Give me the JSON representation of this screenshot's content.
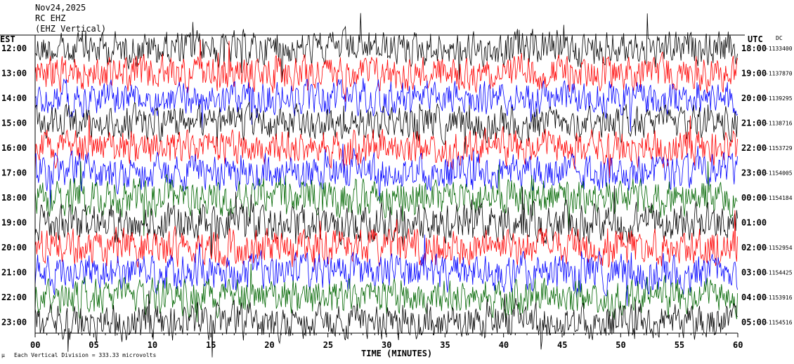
{
  "header": {
    "date": "Nov24,2025",
    "station": "RC EHZ",
    "channel_hint": "(EHZ Vertical)"
  },
  "left_axis_label": "EST",
  "right_axis_label": "UTC",
  "dc_label": "DC",
  "footer": {
    "scale_text": "Each Vertical Division =  333.33 microvolts",
    "mu_symbol": "µ"
  },
  "chart_data": {
    "type": "line",
    "title": "",
    "xlabel": "TIME (MINUTES)",
    "ylabel": "",
    "xlim": [
      0,
      60
    ],
    "x_ticks": [
      "00",
      "05",
      "10",
      "15",
      "20",
      "25",
      "30",
      "35",
      "40",
      "45",
      "50",
      "55",
      "60"
    ],
    "x_tick_values": [
      0,
      5,
      10,
      15,
      20,
      25,
      30,
      35,
      40,
      45,
      50,
      55,
      60
    ],
    "trace_colors": [
      "#000000",
      "#ff0000",
      "#0000ff",
      "#006600"
    ],
    "rows": [
      {
        "est": "12:00",
        "utc": "18:00",
        "dc": "-1133400",
        "color": "#000000",
        "amp": 0.85
      },
      {
        "est": "13:00",
        "utc": "19:00",
        "dc": "-1137870",
        "color": "#ff0000",
        "amp": 0.9
      },
      {
        "est": "14:00",
        "utc": "20:00",
        "dc": "-1139295",
        "color": "#0000ff",
        "amp": 0.8
      },
      {
        "est": "15:00",
        "utc": "21:00",
        "dc": "-1138716",
        "color": "#000000",
        "amp": 0.8
      },
      {
        "est": "16:00",
        "utc": "22:00",
        "dc": "-1153729",
        "color": "#ff0000",
        "amp": 0.95
      },
      {
        "est": "17:00",
        "utc": "23:00",
        "dc": "-1154005",
        "color": "#0000ff",
        "amp": 0.95
      },
      {
        "est": "18:00",
        "utc": "00:00",
        "dc": "-1154184",
        "color": "#006600",
        "amp": 1.0
      },
      {
        "est": "19:00",
        "utc": "01:00",
        "dc": "",
        "color": "#000000",
        "amp": 1.0
      },
      {
        "est": "20:00",
        "utc": "02:00",
        "dc": "-1152954",
        "color": "#ff0000",
        "amp": 1.0
      },
      {
        "est": "21:00",
        "utc": "03:00",
        "dc": "-1154425",
        "color": "#0000ff",
        "amp": 1.0
      },
      {
        "est": "22:00",
        "utc": "04:00",
        "dc": "-1153916",
        "color": "#006600",
        "amp": 1.0
      },
      {
        "est": "23:00",
        "utc": "05:00",
        "dc": "-1154516",
        "color": "#000000",
        "amp": 0.9
      }
    ]
  }
}
